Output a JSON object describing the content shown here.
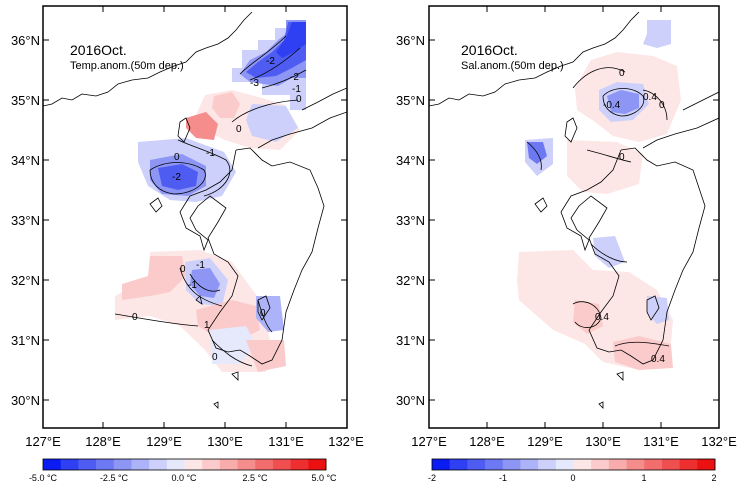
{
  "maps": [
    {
      "title": "2016Oct.",
      "subtitle": "Temp.anom.(50m dep.)",
      "lat_labels": [
        "36°N",
        "35°N",
        "34°N",
        "33°N",
        "32°N",
        "31°N",
        "30°N"
      ],
      "lon_labels": [
        "127°E",
        "128°E",
        "129°E",
        "130°E",
        "131°E",
        "132°E"
      ],
      "contour_labels": [
        "-2",
        "-3",
        "-2",
        "-1",
        "0",
        "0",
        "0",
        "-1",
        "-2",
        "0",
        "-1",
        "-1",
        "0",
        "1",
        "0",
        "0"
      ],
      "colorbar": {
        "ticks": [
          "-5.0 °C",
          "-2.5 °C",
          "0.0 °C",
          "2.5 °C",
          "5.0 °C"
        ],
        "colors": [
          "#0b1cf3",
          "#2f3ff2",
          "#4f5cf2",
          "#6d78f3",
          "#8e96f5",
          "#adb3f8",
          "#ccd0fa",
          "#e6e8fc",
          "#fde6e6",
          "#fbcbcb",
          "#f8acac",
          "#f58d8d",
          "#f26e6e",
          "#f04f4f",
          "#ee2f2f",
          "#ec1111"
        ]
      }
    },
    {
      "title": "2016Oct.",
      "subtitle": "Sal.anom.(50m dep.)",
      "lat_labels": [
        "36°N",
        "35°N",
        "34°N",
        "33°N",
        "32°N",
        "31°N",
        "30°N"
      ],
      "lon_labels": [
        "127°E",
        "128°E",
        "129°E",
        "130°E",
        "131°E",
        "132°E"
      ],
      "contour_labels": [
        "0",
        "-0.4",
        "0.4",
        "0",
        "0",
        "0.4",
        "0.4"
      ],
      "colorbar": {
        "ticks": [
          "-2",
          "-1",
          "0",
          "1",
          "2"
        ],
        "colors": [
          "#0b1cf3",
          "#2f3ff2",
          "#4f5cf2",
          "#6d78f3",
          "#8e96f5",
          "#adb3f8",
          "#ccd0fa",
          "#e6e8fc",
          "#fde6e6",
          "#fbcbcb",
          "#f8acac",
          "#f58d8d",
          "#f26e6e",
          "#f04f4f",
          "#ee2f2f",
          "#ec1111"
        ]
      }
    }
  ]
}
